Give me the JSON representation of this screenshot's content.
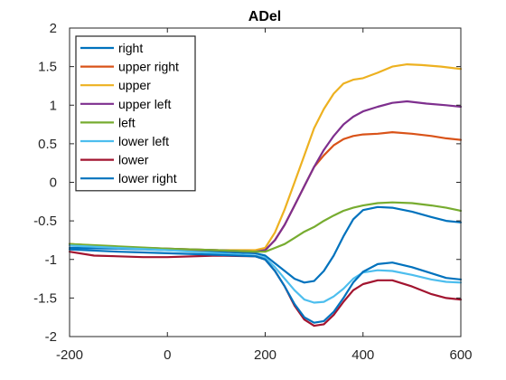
{
  "chart_data": {
    "type": "line",
    "title": "ADel",
    "xlabel": "",
    "ylabel": "",
    "xlim": [
      -200,
      600
    ],
    "ylim": [
      -2,
      2
    ],
    "xticks": [
      -200,
      0,
      200,
      400,
      600
    ],
    "xtick_labels": [
      "-200",
      "0",
      "200",
      "400",
      "600"
    ],
    "yticks": [
      -2,
      -1.5,
      -1,
      -0.5,
      0,
      0.5,
      1,
      1.5,
      2
    ],
    "ytick_labels": [
      "-2",
      "-1.5",
      "-1",
      "-0.5",
      "0",
      "0.5",
      "1",
      "1.5",
      "2"
    ],
    "grid": false,
    "legend_position": "top-left",
    "series": [
      {
        "name": "right",
        "color": "#0072BD",
        "points": [
          [
            -200,
            -0.85
          ],
          [
            -100,
            -0.86
          ],
          [
            0,
            -0.88
          ],
          [
            100,
            -0.9
          ],
          [
            180,
            -0.92
          ],
          [
            200,
            -0.95
          ],
          [
            220,
            -1.05
          ],
          [
            240,
            -1.15
          ],
          [
            260,
            -1.25
          ],
          [
            280,
            -1.3
          ],
          [
            300,
            -1.28
          ],
          [
            320,
            -1.15
          ],
          [
            340,
            -0.95
          ],
          [
            360,
            -0.7
          ],
          [
            380,
            -0.48
          ],
          [
            400,
            -0.36
          ],
          [
            430,
            -0.32
          ],
          [
            460,
            -0.33
          ],
          [
            500,
            -0.38
          ],
          [
            540,
            -0.45
          ],
          [
            570,
            -0.5
          ],
          [
            600,
            -0.52
          ]
        ]
      },
      {
        "name": "upper right",
        "color": "#D95319",
        "points": [
          [
            -200,
            -0.8
          ],
          [
            -100,
            -0.84
          ],
          [
            0,
            -0.87
          ],
          [
            100,
            -0.88
          ],
          [
            180,
            -0.9
          ],
          [
            200,
            -0.88
          ],
          [
            220,
            -0.75
          ],
          [
            240,
            -0.55
          ],
          [
            260,
            -0.3
          ],
          [
            280,
            -0.05
          ],
          [
            300,
            0.2
          ],
          [
            320,
            0.35
          ],
          [
            340,
            0.48
          ],
          [
            360,
            0.56
          ],
          [
            380,
            0.6
          ],
          [
            400,
            0.62
          ],
          [
            430,
            0.63
          ],
          [
            460,
            0.65
          ],
          [
            500,
            0.63
          ],
          [
            540,
            0.6
          ],
          [
            570,
            0.57
          ],
          [
            600,
            0.55
          ]
        ]
      },
      {
        "name": "upper",
        "color": "#EDB120",
        "points": [
          [
            -200,
            -0.8
          ],
          [
            -100,
            -0.84
          ],
          [
            0,
            -0.86
          ],
          [
            100,
            -0.88
          ],
          [
            180,
            -0.88
          ],
          [
            200,
            -0.85
          ],
          [
            220,
            -0.65
          ],
          [
            240,
            -0.35
          ],
          [
            260,
            0.0
          ],
          [
            280,
            0.35
          ],
          [
            300,
            0.7
          ],
          [
            320,
            0.95
          ],
          [
            340,
            1.15
          ],
          [
            360,
            1.28
          ],
          [
            380,
            1.33
          ],
          [
            400,
            1.35
          ],
          [
            430,
            1.42
          ],
          [
            460,
            1.5
          ],
          [
            490,
            1.53
          ],
          [
            520,
            1.52
          ],
          [
            560,
            1.5
          ],
          [
            600,
            1.47
          ]
        ]
      },
      {
        "name": "upper left",
        "color": "#7E2F8E",
        "points": [
          [
            -200,
            -0.82
          ],
          [
            -100,
            -0.84
          ],
          [
            0,
            -0.86
          ],
          [
            100,
            -0.88
          ],
          [
            180,
            -0.9
          ],
          [
            200,
            -0.88
          ],
          [
            220,
            -0.75
          ],
          [
            240,
            -0.55
          ],
          [
            260,
            -0.3
          ],
          [
            280,
            -0.05
          ],
          [
            300,
            0.2
          ],
          [
            320,
            0.42
          ],
          [
            340,
            0.6
          ],
          [
            360,
            0.75
          ],
          [
            380,
            0.85
          ],
          [
            400,
            0.92
          ],
          [
            430,
            0.98
          ],
          [
            460,
            1.03
          ],
          [
            490,
            1.05
          ],
          [
            530,
            1.02
          ],
          [
            570,
            1.0
          ],
          [
            600,
            0.98
          ]
        ]
      },
      {
        "name": "left",
        "color": "#77AC30",
        "points": [
          [
            -200,
            -0.8
          ],
          [
            -100,
            -0.83
          ],
          [
            0,
            -0.86
          ],
          [
            100,
            -0.88
          ],
          [
            180,
            -0.9
          ],
          [
            200,
            -0.9
          ],
          [
            220,
            -0.85
          ],
          [
            240,
            -0.8
          ],
          [
            260,
            -0.72
          ],
          [
            280,
            -0.64
          ],
          [
            300,
            -0.58
          ],
          [
            320,
            -0.5
          ],
          [
            340,
            -0.43
          ],
          [
            360,
            -0.37
          ],
          [
            380,
            -0.33
          ],
          [
            400,
            -0.3
          ],
          [
            430,
            -0.27
          ],
          [
            460,
            -0.26
          ],
          [
            500,
            -0.27
          ],
          [
            540,
            -0.3
          ],
          [
            570,
            -0.33
          ],
          [
            600,
            -0.37
          ]
        ]
      },
      {
        "name": "lower left",
        "color": "#4DBEEE",
        "points": [
          [
            -200,
            -0.82
          ],
          [
            -100,
            -0.85
          ],
          [
            0,
            -0.88
          ],
          [
            100,
            -0.92
          ],
          [
            180,
            -0.95
          ],
          [
            200,
            -0.98
          ],
          [
            220,
            -1.1
          ],
          [
            240,
            -1.25
          ],
          [
            260,
            -1.4
          ],
          [
            280,
            -1.52
          ],
          [
            300,
            -1.56
          ],
          [
            320,
            -1.55
          ],
          [
            340,
            -1.48
          ],
          [
            360,
            -1.38
          ],
          [
            380,
            -1.25
          ],
          [
            400,
            -1.17
          ],
          [
            430,
            -1.14
          ],
          [
            460,
            -1.15
          ],
          [
            500,
            -1.2
          ],
          [
            540,
            -1.26
          ],
          [
            570,
            -1.29
          ],
          [
            600,
            -1.3
          ]
        ]
      },
      {
        "name": "lower",
        "color": "#A2142F",
        "points": [
          [
            -200,
            -0.9
          ],
          [
            -150,
            -0.95
          ],
          [
            -100,
            -0.96
          ],
          [
            -50,
            -0.97
          ],
          [
            0,
            -0.97
          ],
          [
            100,
            -0.95
          ],
          [
            180,
            -0.96
          ],
          [
            200,
            -1.0
          ],
          [
            220,
            -1.15
          ],
          [
            240,
            -1.35
          ],
          [
            260,
            -1.6
          ],
          [
            280,
            -1.78
          ],
          [
            300,
            -1.86
          ],
          [
            320,
            -1.84
          ],
          [
            340,
            -1.72
          ],
          [
            360,
            -1.55
          ],
          [
            380,
            -1.4
          ],
          [
            400,
            -1.32
          ],
          [
            430,
            -1.27
          ],
          [
            460,
            -1.27
          ],
          [
            500,
            -1.35
          ],
          [
            540,
            -1.45
          ],
          [
            570,
            -1.5
          ],
          [
            600,
            -1.52
          ]
        ]
      },
      {
        "name": "lower right",
        "color": "#0072BD",
        "points": [
          [
            -200,
            -0.87
          ],
          [
            -100,
            -0.9
          ],
          [
            0,
            -0.92
          ],
          [
            100,
            -0.94
          ],
          [
            180,
            -0.96
          ],
          [
            200,
            -1.0
          ],
          [
            220,
            -1.15
          ],
          [
            240,
            -1.35
          ],
          [
            260,
            -1.58
          ],
          [
            280,
            -1.75
          ],
          [
            300,
            -1.82
          ],
          [
            320,
            -1.8
          ],
          [
            340,
            -1.68
          ],
          [
            360,
            -1.5
          ],
          [
            380,
            -1.3
          ],
          [
            400,
            -1.16
          ],
          [
            430,
            -1.06
          ],
          [
            460,
            -1.04
          ],
          [
            500,
            -1.1
          ],
          [
            540,
            -1.18
          ],
          [
            570,
            -1.24
          ],
          [
            600,
            -1.26
          ]
        ]
      }
    ]
  }
}
